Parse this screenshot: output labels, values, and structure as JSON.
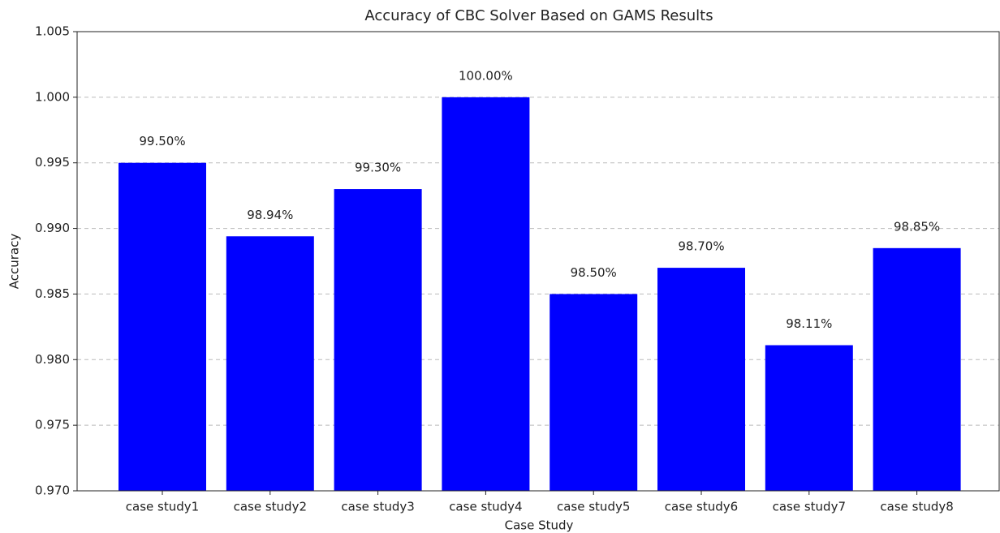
{
  "chart_data": {
    "type": "bar",
    "title": "Accuracy of CBC Solver Based on GAMS Results",
    "xlabel": "Case Study",
    "ylabel": "Accuracy",
    "categories": [
      "case study1",
      "case study2",
      "case study3",
      "case study4",
      "case study5",
      "case study6",
      "case study7",
      "case study8"
    ],
    "values": [
      0.995,
      0.9894,
      0.993,
      1.0,
      0.985,
      0.987,
      0.9811,
      0.9885
    ],
    "value_labels": [
      "99.50%",
      "98.94%",
      "99.30%",
      "100.00%",
      "98.50%",
      "98.70%",
      "98.11%",
      "98.85%"
    ],
    "color": "#0000ff",
    "ylim": [
      0.97,
      1.005
    ],
    "yticks": [
      {
        "value": 0.97,
        "label": "0.970"
      },
      0.975,
      {
        "value": 0.98,
        "label": "0.980"
      },
      0.985,
      {
        "value": 0.99,
        "label": "0.990"
      },
      0.995,
      {
        "value": 1.0,
        "label": "1.000"
      },
      1.005
    ],
    "grid": true
  }
}
